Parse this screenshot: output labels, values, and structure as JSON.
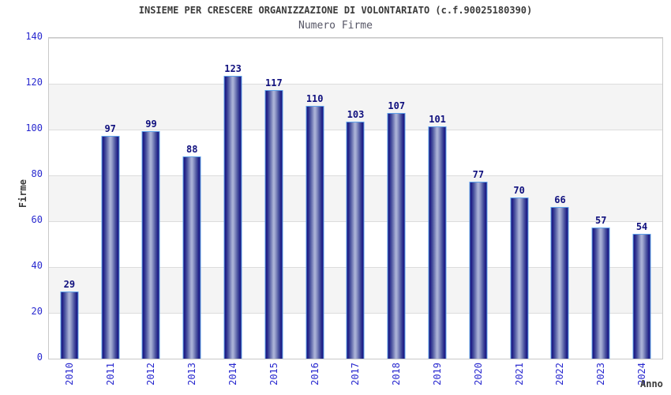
{
  "header": {
    "title": "INSIEME PER CRESCERE ORGANIZZAZIONE DI VOLONTARIATO (c.f.90025180390)",
    "subtitle": "Numero Firme"
  },
  "chart_data": {
    "type": "bar",
    "title": "INSIEME PER CRESCERE ORGANIZZAZIONE DI VOLONTARIATO (c.f.90025180390)",
    "subtitle": "Numero Firme",
    "categories": [
      "2010",
      "2011",
      "2012",
      "2013",
      "2014",
      "2015",
      "2016",
      "2017",
      "2018",
      "2019",
      "2020",
      "2021",
      "2022",
      "2023",
      "2024"
    ],
    "values": [
      29,
      97,
      99,
      88,
      123,
      117,
      110,
      103,
      107,
      101,
      77,
      70,
      66,
      57,
      54
    ],
    "xlabel": "Anno",
    "ylabel": "Firme",
    "ylim": [
      0,
      140
    ],
    "yticks": [
      0,
      20,
      40,
      60,
      80,
      100,
      120,
      140
    ],
    "grid": "horizontal-bands-alternating",
    "legend_position": "none",
    "bar_value_labels": true,
    "x_tick_rotation": -90
  },
  "colors": {
    "tick_label": "#2929cf",
    "bar_value_label": "#10107e",
    "bar_dark": "#17177e",
    "bar_light": "#a9b0d6",
    "bar_border": "#5ea1ea",
    "band_fill": "#f4f4f4",
    "grid_line": "#dcdcdc",
    "plot_border": "#c9c9c9",
    "title_color": "#3a3a3a",
    "subtitle_color": "#565666",
    "axis_label_color": "#3a3a3a"
  }
}
